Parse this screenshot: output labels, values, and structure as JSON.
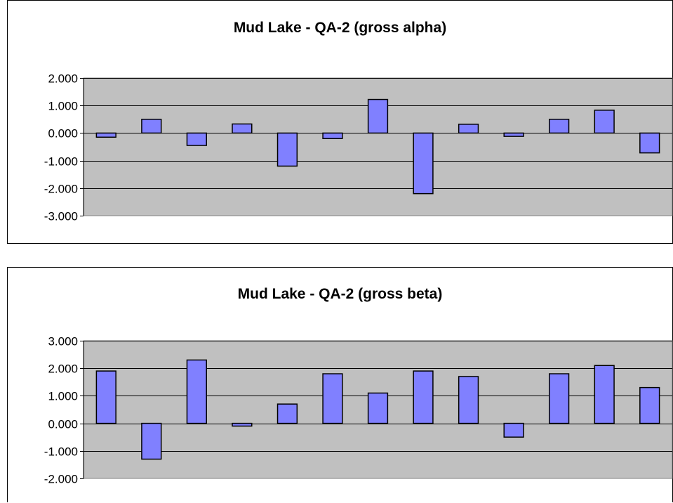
{
  "colors": {
    "plot_area": "#c0c0c0",
    "bar_fill": "#8080ff",
    "bar_stroke": "#000000",
    "grid": "#000000"
  },
  "chart_data": [
    {
      "type": "bar",
      "title": "Mud Lake - QA-2 (gross alpha)",
      "xlabel": "",
      "ylabel": "",
      "ylim": [
        -3,
        2
      ],
      "yticks": [
        2,
        1,
        0,
        -1,
        -2,
        -3
      ],
      "ytick_labels": [
        "2.000",
        "1.000",
        "0.000",
        "-1.000",
        "-2.000",
        "-3.000"
      ],
      "grid": true,
      "values": [
        -0.15,
        0.5,
        -0.45,
        0.33,
        -1.2,
        -0.2,
        1.22,
        -2.2,
        0.32,
        -0.12,
        0.5,
        0.83,
        -0.72
      ]
    },
    {
      "type": "bar",
      "title": "Mud Lake - QA-2 (gross beta)",
      "xlabel": "",
      "ylabel": "",
      "ylim": [
        -2,
        3
      ],
      "yticks": [
        3,
        2,
        1,
        0,
        -1,
        -2
      ],
      "ytick_labels": [
        "3.000",
        "2.000",
        "1.000",
        "0.000",
        "-1.000",
        "-2.000"
      ],
      "grid": true,
      "values": [
        1.9,
        -1.3,
        2.3,
        -0.1,
        0.7,
        1.8,
        1.1,
        1.9,
        1.7,
        -0.5,
        1.8,
        2.1,
        1.3
      ]
    }
  ]
}
